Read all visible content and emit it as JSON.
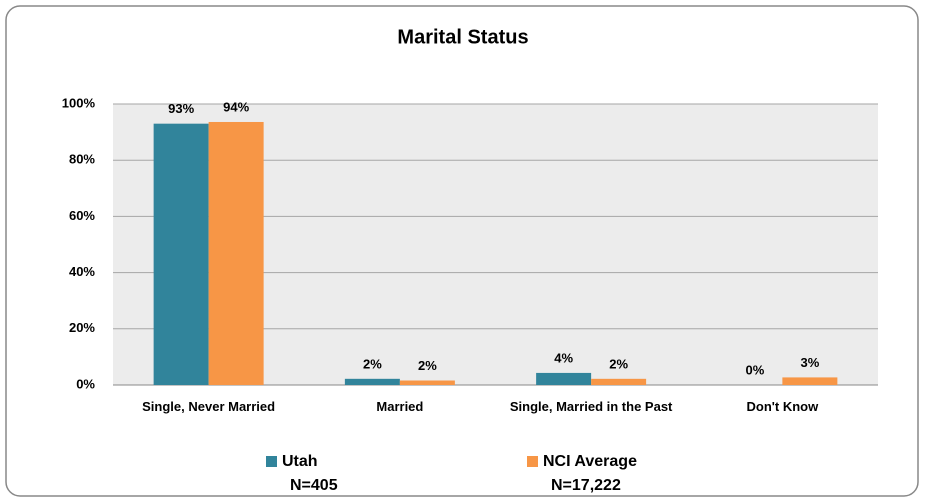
{
  "chart_data": {
    "type": "bar",
    "title": "Marital Status",
    "categories": [
      "Single, Never Married",
      "Married",
      "Single, Married in the Past",
      "Don't Know"
    ],
    "series": [
      {
        "name": "Utah",
        "n_label": "N=405",
        "color": "#31849b",
        "values": [
          93,
          2.2,
          4.3,
          0
        ],
        "value_labels": [
          "93%",
          "2%",
          "4%",
          "0%"
        ]
      },
      {
        "name": "NCI Average",
        "n_label": "N=17,222",
        "color": "#f79646",
        "values": [
          93.6,
          1.6,
          2.2,
          2.7
        ],
        "value_labels": [
          "94%",
          "2%",
          "2%",
          "3%"
        ]
      }
    ],
    "ylim": [
      0,
      100
    ],
    "yticks": [
      {
        "value": 0,
        "label": "0%"
      },
      {
        "value": 20,
        "label": "20%"
      },
      {
        "value": 40,
        "label": "40%"
      },
      {
        "value": 60,
        "label": "60%"
      },
      {
        "value": 80,
        "label": "80%"
      },
      {
        "value": 100,
        "label": "100%"
      }
    ],
    "grid": true,
    "legend": "bottom"
  }
}
